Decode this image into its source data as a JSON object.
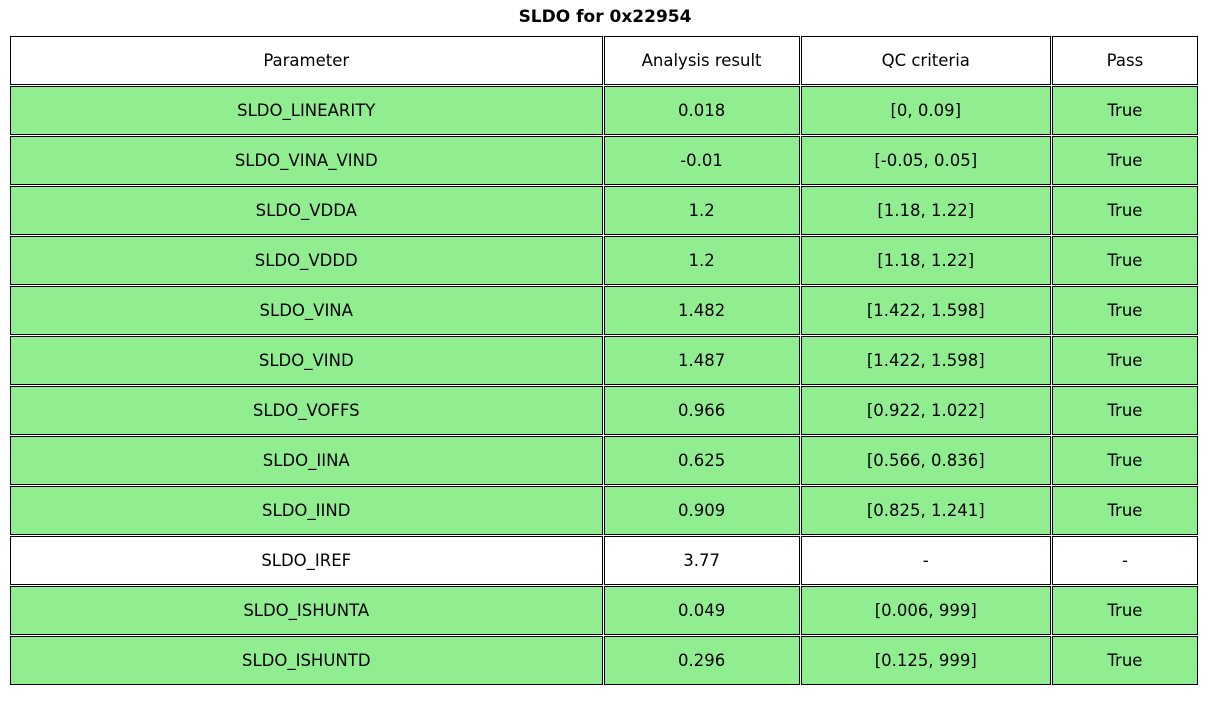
{
  "chart_data": {
    "type": "table",
    "title": "SLDO for 0x22954",
    "columns": [
      "Parameter",
      "Analysis result",
      "QC criteria",
      "Pass"
    ],
    "rows": [
      {
        "cells": [
          "SLDO_LINEARITY",
          "0.018",
          "[0, 0.09]",
          "True"
        ],
        "highlight": true
      },
      {
        "cells": [
          "SLDO_VINA_VIND",
          "-0.01",
          "[-0.05, 0.05]",
          "True"
        ],
        "highlight": true
      },
      {
        "cells": [
          "SLDO_VDDA",
          "1.2",
          "[1.18, 1.22]",
          "True"
        ],
        "highlight": true
      },
      {
        "cells": [
          "SLDO_VDDD",
          "1.2",
          "[1.18, 1.22]",
          "True"
        ],
        "highlight": true
      },
      {
        "cells": [
          "SLDO_VINA",
          "1.482",
          "[1.422, 1.598]",
          "True"
        ],
        "highlight": true
      },
      {
        "cells": [
          "SLDO_VIND",
          "1.487",
          "[1.422, 1.598]",
          "True"
        ],
        "highlight": true
      },
      {
        "cells": [
          "SLDO_VOFFS",
          "0.966",
          "[0.922, 1.022]",
          "True"
        ],
        "highlight": true
      },
      {
        "cells": [
          "SLDO_IINA",
          "0.625",
          "[0.566, 0.836]",
          "True"
        ],
        "highlight": true
      },
      {
        "cells": [
          "SLDO_IIND",
          "0.909",
          "[0.825, 1.241]",
          "True"
        ],
        "highlight": true
      },
      {
        "cells": [
          "SLDO_IREF",
          "3.77",
          "-",
          "-"
        ],
        "highlight": false
      },
      {
        "cells": [
          "SLDO_ISHUNTA",
          "0.049",
          "[0.006, 999]",
          "True"
        ],
        "highlight": true
      },
      {
        "cells": [
          "SLDO_ISHUNTD",
          "0.296",
          "[0.125, 999]",
          "True"
        ],
        "highlight": true
      }
    ],
    "layout_hints": {
      "header_background": "#ffffff",
      "grid": "black cell borders, each cell outlined",
      "title_position": "top-center"
    }
  },
  "colors": {
    "pass_row": "#90ee90",
    "neutral_row": "#ffffff",
    "border": "#000000",
    "text": "#000000"
  }
}
